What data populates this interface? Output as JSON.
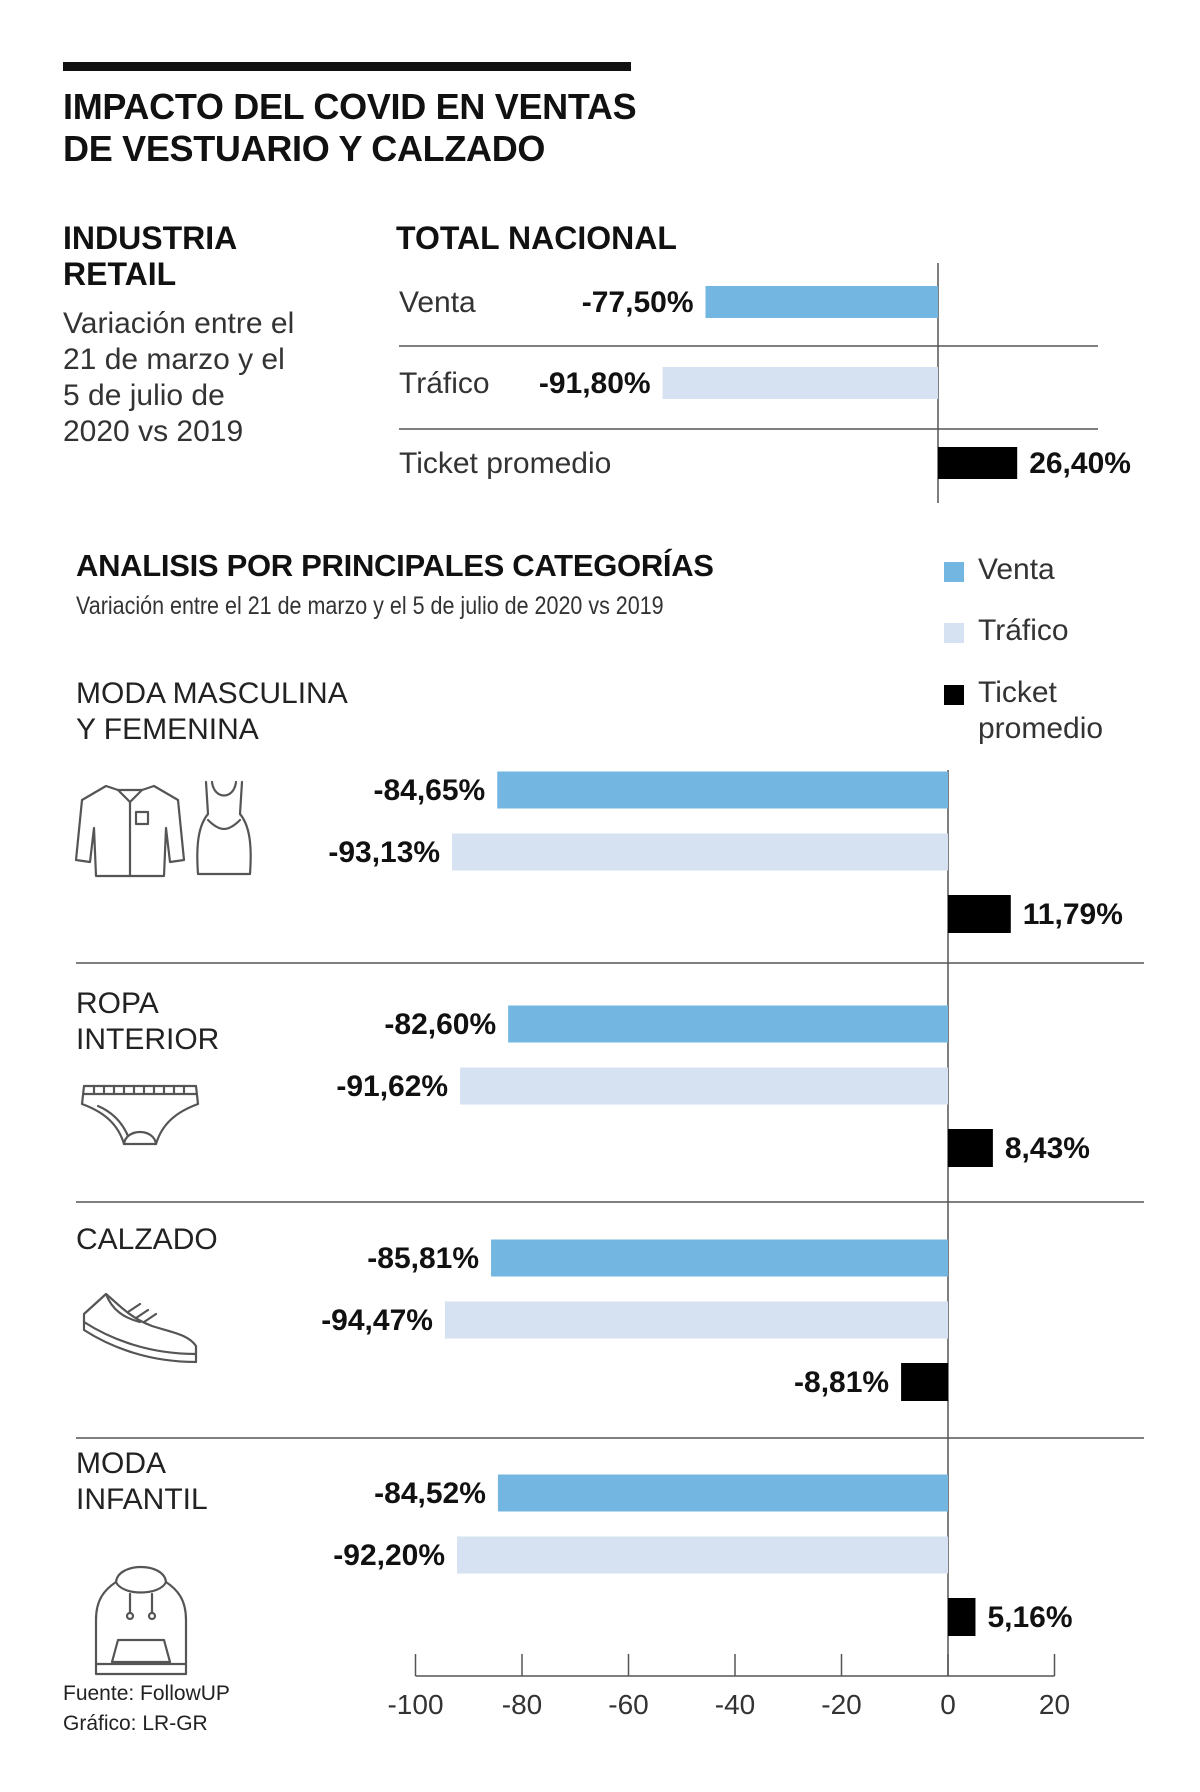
{
  "header": {
    "title_line1": "IMPACTO DEL COVID EN VENTAS",
    "title_line2": "DE VESTUARIO Y CALZADO"
  },
  "industry": {
    "title_line1": "INDUSTRIA",
    "title_line2": "RETAIL",
    "desc_line1": "Variación entre el",
    "desc_line2": "21 de marzo y el",
    "desc_line3": "5 de julio de",
    "desc_line4": "2020  vs 2019"
  },
  "legend": {
    "venta": "Venta",
    "trafico": "Tráfico",
    "ticket_line1": "Ticket",
    "ticket_line2": "promedio"
  },
  "source": {
    "line1": "Fuente: FollowUP",
    "line2": "Gráfico: LR-GR"
  },
  "colors": {
    "venta": "#74b6e2",
    "trafico": "#d6e2f2",
    "ticket": "#000000",
    "line": "#555555"
  },
  "chart_data": [
    {
      "type": "bar",
      "title": "TOTAL NACIONAL",
      "orientation": "horizontal",
      "categories": [
        "Venta",
        "Tráfico",
        "Ticket promedio"
      ],
      "values": [
        -77.5,
        -91.8,
        26.4
      ],
      "labels": [
        "-77,50%",
        "-91,80%",
        "26,40%"
      ]
    },
    {
      "type": "bar",
      "title": "ANALISIS POR PRINCIPALES CATEGORÍAS",
      "subtitle": "Variación entre el 21 de marzo y el 5 de julio de 2020  vs 2019",
      "orientation": "horizontal",
      "xlim": [
        -100,
        20
      ],
      "ticks": [
        -100,
        -80,
        -60,
        -40,
        -20,
        0,
        20
      ],
      "tick_labels": [
        "-100",
        "-80",
        "-60",
        "-40",
        "-20",
        "0",
        "20"
      ],
      "categories": [
        {
          "name_line1": "MODA MASCULINA",
          "name_line2": "Y FEMENINA",
          "icon": "clothing-icon"
        },
        {
          "name_line1": "ROPA",
          "name_line2": "INTERIOR",
          "icon": "underwear-icon"
        },
        {
          "name_line1": "CALZADO",
          "name_line2": "",
          "icon": "sneaker-icon"
        },
        {
          "name_line1": "MODA",
          "name_line2": "INFANTIL",
          "icon": "hoodie-icon"
        }
      ],
      "series": [
        {
          "name": "Venta",
          "values": [
            -84.65,
            -82.6,
            -85.81,
            -84.52
          ],
          "labels": [
            "-84,65%",
            "-82,60%",
            "-85,81%",
            "-84,52%"
          ]
        },
        {
          "name": "Tráfico",
          "values": [
            -93.13,
            -91.62,
            -94.47,
            -92.2
          ],
          "labels": [
            "-93,13%",
            "-91,62%",
            "-94,47%",
            "-92,20%"
          ]
        },
        {
          "name": "Ticket promedio",
          "values": [
            11.79,
            8.43,
            -8.81,
            5.16
          ],
          "labels": [
            "11,79%",
            "8,43%",
            "-8,81%",
            "5,16%"
          ]
        }
      ]
    }
  ]
}
